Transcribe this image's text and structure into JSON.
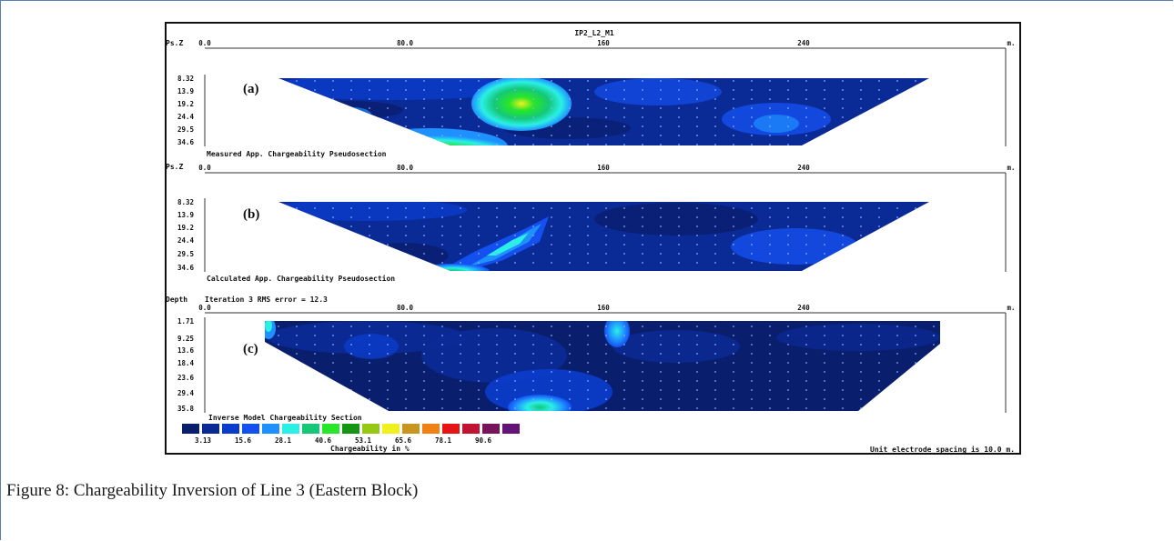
{
  "figure": {
    "title": "IP2_L2_M1",
    "caption": "Figure 8: Chargeability Inversion of Line 3 (Eastern Block)",
    "x_axis": {
      "ticks": [
        "0.0",
        "80.0",
        "160",
        "240"
      ],
      "unit": "m."
    },
    "colors": [
      "#0a1e6e",
      "#0a2a96",
      "#0a3ccc",
      "#1450f0",
      "#1e90ff",
      "#2af0e6",
      "#14c878",
      "#28e628",
      "#149614",
      "#96c814",
      "#f0f01e",
      "#c8961e",
      "#f08214",
      "#e61414",
      "#c01432",
      "#78145a",
      "#641478"
    ],
    "panels": [
      {
        "label": "(a)",
        "axis_label": "Ps.Z",
        "depths": [
          "8.32",
          "13.9",
          "19.2",
          "24.4",
          "29.5",
          "34.6"
        ],
        "subtitle": "Measured App. Chargeability Pseudosection"
      },
      {
        "label": "(b)",
        "axis_label": "Ps.Z",
        "depths": [
          "8.32",
          "13.9",
          "19.2",
          "24.4",
          "29.5",
          "34.6"
        ],
        "subtitle": "Calculated App. Chargeability Pseudosection"
      },
      {
        "label": "(c)",
        "axis_label": "Depth",
        "header": "Iteration 3 RMS error = 12.3",
        "depths": [
          "1.71",
          "9.25",
          "13.6",
          "18.4",
          "23.6",
          "29.4",
          "35.8"
        ],
        "subtitle": "Inverse Model Chargeability Section"
      }
    ],
    "legend": {
      "values": [
        "3.13",
        "15.6",
        "28.1",
        "40.6",
        "53.1",
        "65.6",
        "78.1",
        "90.6"
      ],
      "title": "Chargeability in %",
      "note": "Unit electrode spacing is 10.0 m."
    }
  }
}
